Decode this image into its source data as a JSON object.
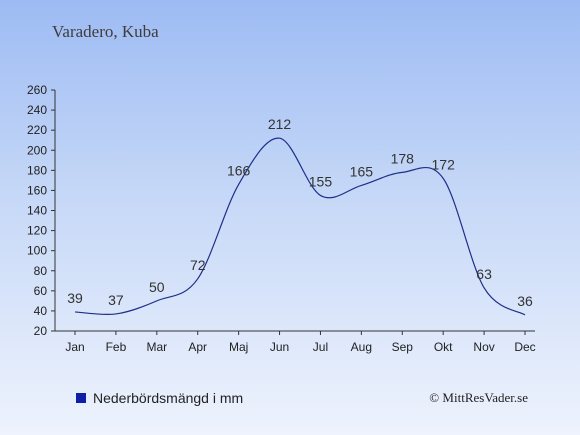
{
  "header": {
    "location": "Varadero, Kuba"
  },
  "legend": {
    "label": "Nederbördsmängd i mm",
    "color": "#0e1ea8"
  },
  "credit": {
    "text": "© MittResVader.se"
  },
  "chart_data": {
    "type": "line",
    "title": "Varadero, Kuba",
    "xlabel": "",
    "ylabel": "",
    "categories": [
      "Jan",
      "Feb",
      "Mar",
      "Apr",
      "Maj",
      "Jun",
      "Jul",
      "Aug",
      "Sep",
      "Okt",
      "Nov",
      "Dec"
    ],
    "series": [
      {
        "name": "Nederbördsmängd i mm",
        "values": [
          39,
          37,
          50,
          72,
          166,
          212,
          155,
          165,
          178,
          172,
          63,
          36
        ]
      }
    ],
    "ylim": [
      20,
      260
    ],
    "yticks": [
      20,
      40,
      60,
      80,
      100,
      120,
      140,
      160,
      180,
      200,
      220,
      240,
      260
    ],
    "grid": false,
    "legend_position": "bottom-left",
    "line_color": "#1f2f8a"
  }
}
